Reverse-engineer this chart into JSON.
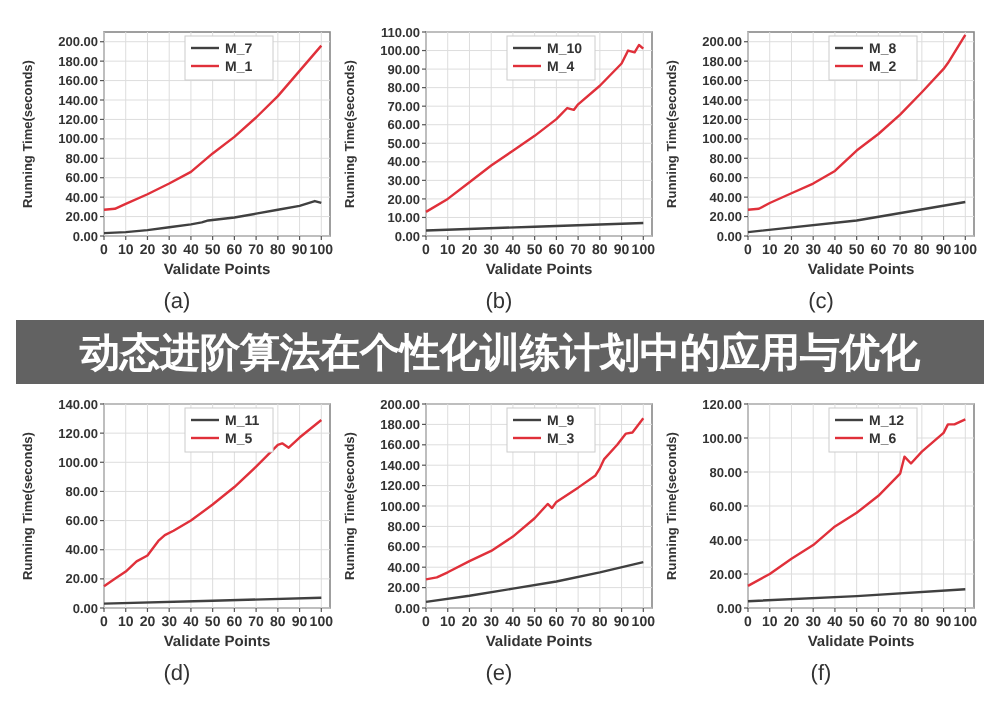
{
  "chart_data": [
    {
      "type": "line",
      "xlabel": "Validate Points",
      "ylabel": "Running Time(seconds)",
      "annotations": [
        "(a)"
      ],
      "xlim": [
        0,
        104
      ],
      "ylim": [
        0,
        210
      ],
      "xticks": [
        0,
        10,
        20,
        30,
        40,
        50,
        60,
        70,
        80,
        90,
        100
      ],
      "yticks": [
        {
          "value": 0,
          "label": "0.00"
        },
        {
          "value": 20,
          "label": "20.00"
        },
        {
          "value": 40,
          "label": "40.00"
        },
        {
          "value": 60,
          "label": "60.00"
        },
        {
          "value": 80,
          "label": "80.00"
        },
        {
          "value": 100,
          "label": "100.00"
        },
        {
          "value": 120,
          "label": "120.00"
        },
        {
          "value": 140,
          "label": "140.00"
        },
        {
          "value": 160,
          "label": "160.00"
        },
        {
          "value": 180,
          "label": "180.00"
        },
        {
          "value": 200,
          "label": "200.00"
        }
      ],
      "grid": true,
      "legend": "top",
      "marker": "none",
      "line_style": "solid",
      "series": [
        {
          "name": "M_7",
          "color": "#404040",
          "x": [
            0,
            10,
            20,
            30,
            40,
            45,
            48,
            60,
            70,
            80,
            90,
            97,
            100
          ],
          "values": [
            3,
            4,
            6,
            9,
            12,
            14,
            16,
            19,
            23,
            27,
            31,
            36,
            34
          ]
        },
        {
          "name": "M_1",
          "color": "#e0303a",
          "x": [
            0,
            5,
            10,
            20,
            30,
            40,
            50,
            60,
            70,
            80,
            90,
            100
          ],
          "values": [
            27,
            28,
            33,
            43,
            54,
            66,
            85,
            102,
            122,
            144,
            170,
            196
          ]
        }
      ]
    },
    {
      "type": "line",
      "xlabel": "Validate Points",
      "ylabel": "Running Time(seconds)",
      "annotations": [
        "(b)"
      ],
      "xlim": [
        0,
        104
      ],
      "ylim": [
        0,
        110
      ],
      "xticks": [
        0,
        10,
        20,
        30,
        40,
        50,
        60,
        70,
        80,
        90,
        100
      ],
      "yticks": [
        {
          "value": 0,
          "label": "0.00"
        },
        {
          "value": 10,
          "label": "10.00"
        },
        {
          "value": 20,
          "label": "20.00"
        },
        {
          "value": 30,
          "label": "30.00"
        },
        {
          "value": 40,
          "label": "40.00"
        },
        {
          "value": 50,
          "label": "50.00"
        },
        {
          "value": 60,
          "label": "60.00"
        },
        {
          "value": 70,
          "label": "70.00"
        },
        {
          "value": 80,
          "label": "80.00"
        },
        {
          "value": 90,
          "label": "90.00"
        },
        {
          "value": 100,
          "label": "100.00"
        },
        {
          "value": 110,
          "label": "110.00"
        }
      ],
      "grid": true,
      "legend": "top",
      "marker": "none",
      "line_style": "solid",
      "series": [
        {
          "name": "M_10",
          "color": "#404040",
          "x": [
            0,
            50,
            100
          ],
          "values": [
            3,
            5,
            7
          ]
        },
        {
          "name": "M_4",
          "color": "#e0303a",
          "x": [
            0,
            10,
            20,
            30,
            40,
            50,
            60,
            65,
            68,
            70,
            80,
            90,
            93,
            96,
            98,
            100
          ],
          "values": [
            13,
            20,
            29,
            38,
            46,
            54,
            63,
            69,
            68,
            71,
            81,
            93,
            100,
            99,
            103,
            101
          ]
        }
      ]
    },
    {
      "type": "line",
      "xlabel": "Validate Points",
      "ylabel": "Running Time(seconds)",
      "annotations": [
        "(c)"
      ],
      "xlim": [
        0,
        104
      ],
      "ylim": [
        0,
        210
      ],
      "xticks": [
        0,
        10,
        20,
        30,
        40,
        50,
        60,
        70,
        80,
        90,
        100
      ],
      "yticks": [
        {
          "value": 0,
          "label": "0.00"
        },
        {
          "value": 20,
          "label": "20.00"
        },
        {
          "value": 40,
          "label": "40.00"
        },
        {
          "value": 60,
          "label": "60.00"
        },
        {
          "value": 80,
          "label": "80.00"
        },
        {
          "value": 100,
          "label": "100.00"
        },
        {
          "value": 120,
          "label": "120.00"
        },
        {
          "value": 140,
          "label": "140.00"
        },
        {
          "value": 160,
          "label": "160.00"
        },
        {
          "value": 180,
          "label": "180.00"
        },
        {
          "value": 200,
          "label": "200.00"
        }
      ],
      "grid": true,
      "legend": "top",
      "marker": "none",
      "line_style": "solid",
      "series": [
        {
          "name": "M_8",
          "color": "#404040",
          "x": [
            0,
            50,
            100
          ],
          "values": [
            4,
            16,
            35
          ]
        },
        {
          "name": "M_2",
          "color": "#e0303a",
          "x": [
            0,
            5,
            10,
            20,
            30,
            40,
            50,
            60,
            70,
            80,
            90,
            92,
            100
          ],
          "values": [
            27,
            28,
            34,
            44,
            54,
            67,
            88,
            105,
            125,
            148,
            172,
            178,
            207
          ]
        }
      ]
    },
    {
      "type": "other",
      "title": "动态进阶算法在个性化训练计划中的应用与优化"
    },
    {
      "type": "line",
      "xlabel": "Validate Points",
      "ylabel": "Running Time(seconds)",
      "annotations": [
        "(d)"
      ],
      "xlim": [
        0,
        104
      ],
      "ylim": [
        0,
        140
      ],
      "xticks": [
        0,
        10,
        20,
        30,
        40,
        50,
        60,
        70,
        80,
        90,
        100
      ],
      "yticks": [
        {
          "value": 0,
          "label": "0.00"
        },
        {
          "value": 20,
          "label": "20.00"
        },
        {
          "value": 40,
          "label": "40.00"
        },
        {
          "value": 60,
          "label": "60.00"
        },
        {
          "value": 80,
          "label": "80.00"
        },
        {
          "value": 100,
          "label": "100.00"
        },
        {
          "value": 120,
          "label": "120.00"
        },
        {
          "value": 140,
          "label": "140.00"
        }
      ],
      "grid": true,
      "legend": "top",
      "marker": "none",
      "line_style": "solid",
      "series": [
        {
          "name": "M_11",
          "color": "#404040",
          "x": [
            0,
            50,
            100
          ],
          "values": [
            3,
            5,
            7
          ]
        },
        {
          "name": "M_5",
          "color": "#e0303a",
          "x": [
            0,
            5,
            10,
            15,
            20,
            25,
            28,
            32,
            40,
            50,
            60,
            70,
            80,
            82,
            85,
            90,
            100
          ],
          "values": [
            15,
            20,
            25,
            32,
            36,
            46,
            50,
            53,
            60,
            71,
            83,
            97,
            112,
            113,
            110,
            117,
            129
          ]
        }
      ]
    },
    {
      "type": "line",
      "xlabel": "Validate Points",
      "ylabel": "Running Time(seconds)",
      "annotations": [
        "(e)"
      ],
      "xlim": [
        0,
        104
      ],
      "ylim": [
        0,
        200
      ],
      "xticks": [
        0,
        10,
        20,
        30,
        40,
        50,
        60,
        70,
        80,
        90,
        100
      ],
      "yticks": [
        {
          "value": 0,
          "label": "0.00"
        },
        {
          "value": 20,
          "label": "20.00"
        },
        {
          "value": 40,
          "label": "40.00"
        },
        {
          "value": 60,
          "label": "60.00"
        },
        {
          "value": 80,
          "label": "80.00"
        },
        {
          "value": 100,
          "label": "100.00"
        },
        {
          "value": 120,
          "label": "120.00"
        },
        {
          "value": 140,
          "label": "140.00"
        },
        {
          "value": 160,
          "label": "160.00"
        },
        {
          "value": 180,
          "label": "180.00"
        },
        {
          "value": 200,
          "label": "200.00"
        }
      ],
      "grid": true,
      "legend": "top",
      "marker": "none",
      "line_style": "solid",
      "series": [
        {
          "name": "M_9",
          "color": "#404040",
          "x": [
            0,
            20,
            40,
            60,
            80,
            100
          ],
          "values": [
            6,
            12,
            19,
            26,
            35,
            45
          ]
        },
        {
          "name": "M_3",
          "color": "#e0303a",
          "x": [
            0,
            5,
            10,
            20,
            30,
            40,
            50,
            56,
            58,
            60,
            70,
            78,
            80,
            82,
            88,
            92,
            95,
            100
          ],
          "values": [
            28,
            30,
            35,
            46,
            56,
            70,
            88,
            102,
            98,
            104,
            118,
            130,
            137,
            146,
            160,
            171,
            172,
            186
          ]
        }
      ]
    },
    {
      "type": "line",
      "xlabel": "Validate Points",
      "ylabel": "Running Time(seconds)",
      "annotations": [
        "(f)"
      ],
      "xlim": [
        0,
        104
      ],
      "ylim": [
        0,
        120
      ],
      "xticks": [
        0,
        10,
        20,
        30,
        40,
        50,
        60,
        70,
        80,
        90,
        100
      ],
      "yticks": [
        {
          "value": 0,
          "label": "0.00"
        },
        {
          "value": 20,
          "label": "20.00"
        },
        {
          "value": 40,
          "label": "40.00"
        },
        {
          "value": 60,
          "label": "60.00"
        },
        {
          "value": 80,
          "label": "80.00"
        },
        {
          "value": 100,
          "label": "100.00"
        },
        {
          "value": 120,
          "label": "120.00"
        }
      ],
      "grid": true,
      "legend": "top",
      "marker": "none",
      "line_style": "solid",
      "series": [
        {
          "name": "M_12",
          "color": "#404040",
          "x": [
            0,
            50,
            100
          ],
          "values": [
            4,
            7,
            11
          ]
        },
        {
          "name": "M_6",
          "color": "#e0303a",
          "x": [
            0,
            10,
            20,
            30,
            40,
            50,
            60,
            70,
            72,
            75,
            80,
            90,
            92,
            95,
            100
          ],
          "values": [
            13,
            20,
            29,
            37,
            48,
            56,
            66,
            79,
            89,
            85,
            92,
            103,
            108,
            108,
            111
          ]
        }
      ]
    }
  ]
}
